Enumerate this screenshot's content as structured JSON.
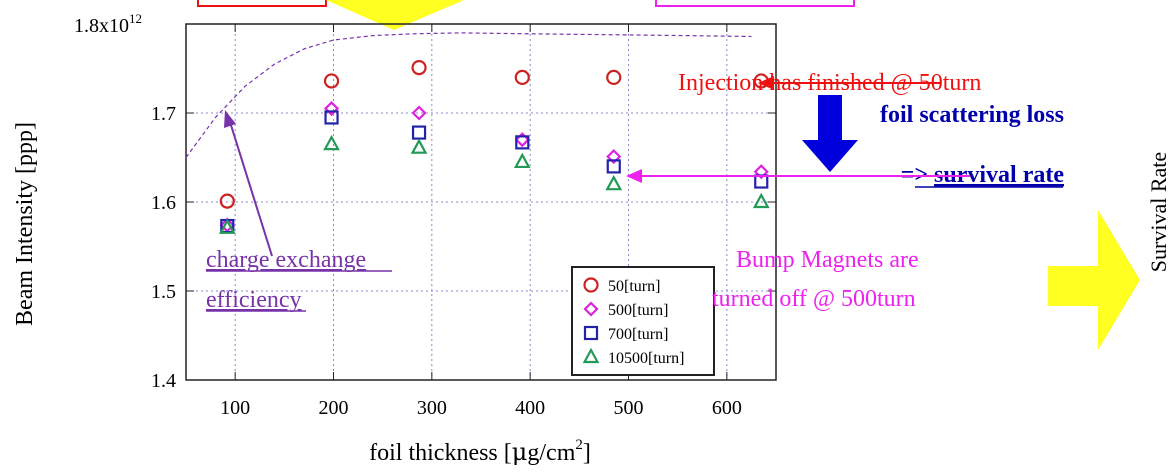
{
  "chart_data": {
    "type": "scatter",
    "title": "",
    "xlabel": "foil thickness [µg/cm²]",
    "ylabel": "Beam Intensity [ppp]",
    "right_label": "Survival Rate",
    "xlim": [
      50,
      650
    ],
    "ylim": [
      1.4,
      1.8
    ],
    "x_ticks": [
      100,
      200,
      300,
      400,
      500,
      600
    ],
    "y_ticks": [
      {
        "value": 1.4,
        "label": "1.4"
      },
      {
        "value": 1.5,
        "label": "1.5"
      },
      {
        "value": 1.6,
        "label": "1.6"
      },
      {
        "value": 1.7,
        "label": "1.7"
      },
      {
        "value": 1.8,
        "label": "1.8x10",
        "exp": "12"
      }
    ],
    "grid": true,
    "legend_position": "bottom-right",
    "series": [
      {
        "name": "50[turn]",
        "marker": "circle",
        "color": "#cc2222",
        "x": [
          92,
          198,
          287,
          392,
          485,
          635
        ],
        "y": [
          1.601,
          1.736,
          1.751,
          1.74,
          1.74,
          1.736
        ]
      },
      {
        "name": "500[turn]",
        "marker": "diamond",
        "color": "#dd22dd",
        "x": [
          92,
          198,
          287,
          392,
          485,
          635
        ],
        "y": [
          1.574,
          1.705,
          1.7,
          1.67,
          1.651,
          1.634
        ]
      },
      {
        "name": "700[turn]",
        "marker": "square",
        "color": "#2222aa",
        "x": [
          92,
          198,
          287,
          392,
          485,
          635
        ],
        "y": [
          1.573,
          1.695,
          1.678,
          1.667,
          1.64,
          1.623
        ]
      },
      {
        "name": "10500[turn]",
        "marker": "triangle",
        "color": "#229955",
        "x": [
          92,
          198,
          287,
          392,
          485,
          635
        ],
        "y": [
          1.571,
          1.665,
          1.661,
          1.645,
          1.62,
          1.6
        ]
      }
    ],
    "efficiency_curve": {
      "x": [
        50,
        80,
        110,
        140,
        170,
        200,
        240,
        280,
        330,
        400,
        480,
        560,
        625
      ],
      "y": [
        1.65,
        1.695,
        1.73,
        1.755,
        1.772,
        1.782,
        1.787,
        1.789,
        1.79,
        1.789,
        1.788,
        1.787,
        1.786
      ]
    }
  },
  "annotations": {
    "injection_finished": "Injection has finished @ 50turn",
    "foil_loss_line1": "foil scattering loss",
    "foil_loss_line2_prefix": "=> ",
    "foil_loss_line2_underlined": "survival rate",
    "bump_line1": "Bump Magnets are",
    "bump_line2": "turned off @ 500turn",
    "charge_line1": "charge exchange",
    "charge_line2": "efficiency"
  },
  "colors": {
    "red": "#ee1111",
    "magenta": "#ee22ee",
    "purple": "#7733aa",
    "blue": "#0000dd",
    "navy": "#0000aa",
    "yellow": "#ffff22"
  }
}
